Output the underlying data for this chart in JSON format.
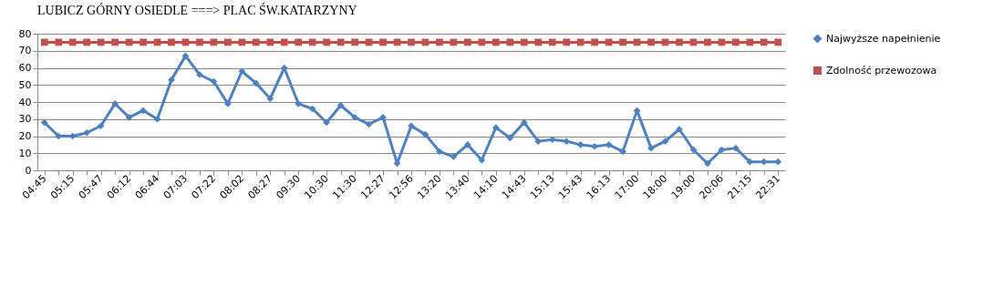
{
  "chart_data": {
    "type": "line",
    "title": "LUBICZ GÓRNY OSIEDLE ===> PLAC ŚW.KATARZYNY",
    "categories": [
      "04:45",
      null,
      "05:15",
      null,
      "05:47",
      null,
      "06:12",
      null,
      "06:44",
      null,
      "07:03",
      null,
      "07:22",
      null,
      "08:02",
      null,
      "08:27",
      null,
      "09:30",
      null,
      "10:30",
      null,
      "11:30",
      null,
      "12:27",
      null,
      "12:56",
      null,
      "13:20",
      null,
      "13:40",
      null,
      "14:10",
      null,
      "14:43",
      null,
      "15:13",
      null,
      "15:43",
      null,
      "16:13",
      null,
      "17:00",
      null,
      "18:00",
      null,
      "19:00",
      null,
      "20:06",
      null,
      "21:15",
      null,
      "22:31"
    ],
    "series": [
      {
        "name": "Najwyższe napełnienie",
        "color": "#4f81bd",
        "marker": "diamond",
        "values": [
          28,
          20,
          20,
          22,
          26,
          39,
          31,
          35,
          30,
          53,
          67,
          56,
          52,
          39,
          58,
          51,
          42,
          60,
          39,
          36,
          28,
          38,
          31,
          27,
          31,
          4,
          26,
          21,
          11,
          8,
          15,
          6,
          25,
          19,
          28,
          17,
          18,
          17,
          15,
          14,
          15,
          11,
          35,
          13,
          17,
          24,
          12,
          4,
          12,
          13,
          5,
          5,
          5
        ]
      },
      {
        "name": "Zdolność przewozowa",
        "color": "#c0504d",
        "marker": "square",
        "values": [
          75,
          75,
          75,
          75,
          75,
          75,
          75,
          75,
          75,
          75,
          75,
          75,
          75,
          75,
          75,
          75,
          75,
          75,
          75,
          75,
          75,
          75,
          75,
          75,
          75,
          75,
          75,
          75,
          75,
          75,
          75,
          75,
          75,
          75,
          75,
          75,
          75,
          75,
          75,
          75,
          75,
          75,
          75,
          75,
          75,
          75,
          75,
          75,
          75,
          75,
          75,
          75,
          75
        ]
      }
    ],
    "ylim": [
      0,
      80
    ],
    "yticks": [
      0,
      10,
      20,
      30,
      40,
      50,
      60,
      70,
      80
    ],
    "grid": "y",
    "legend": "right"
  }
}
